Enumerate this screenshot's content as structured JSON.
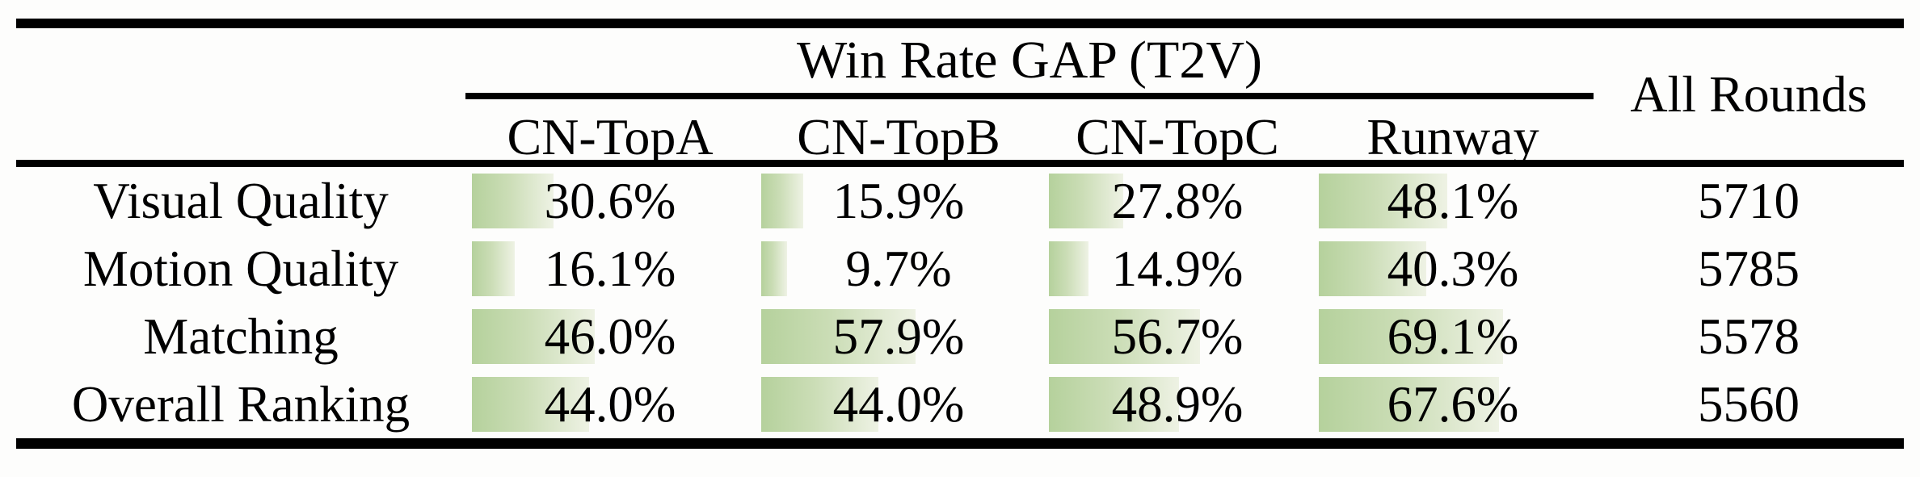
{
  "table": {
    "group_header": "Win Rate GAP (T2V)",
    "all_rounds_header": "All Rounds",
    "columns": [
      "CN-TopA",
      "CN-TopB",
      "CN-TopC",
      "Runway"
    ],
    "rows": [
      {
        "label": "Visual Quality",
        "cells": [
          {
            "pct": 30.6,
            "label": "30.6%"
          },
          {
            "pct": 15.9,
            "label": "15.9%"
          },
          {
            "pct": 27.8,
            "label": "27.8%"
          },
          {
            "pct": 48.1,
            "label": "48.1%"
          }
        ],
        "all_rounds": "5710"
      },
      {
        "label": "Motion Quality",
        "cells": [
          {
            "pct": 16.1,
            "label": "16.1%"
          },
          {
            "pct": 9.7,
            "label": "9.7%"
          },
          {
            "pct": 14.9,
            "label": "14.9%"
          },
          {
            "pct": 40.3,
            "label": "40.3%"
          }
        ],
        "all_rounds": "5785"
      },
      {
        "label": "Matching",
        "cells": [
          {
            "pct": 46.0,
            "label": "46.0%"
          },
          {
            "pct": 57.9,
            "label": "57.9%"
          },
          {
            "pct": 56.7,
            "label": "56.7%"
          },
          {
            "pct": 69.1,
            "label": "69.1%"
          }
        ],
        "all_rounds": "5578"
      },
      {
        "label": "Overall Ranking",
        "cells": [
          {
            "pct": 44.0,
            "label": "44.0%"
          },
          {
            "pct": 44.0,
            "label": "44.0%"
          },
          {
            "pct": 48.9,
            "label": "48.9%"
          },
          {
            "pct": 67.6,
            "label": "67.6%"
          }
        ],
        "all_rounds": "5560"
      }
    ],
    "colors": {
      "bar_left": "#b5d19c",
      "bar_right": "#eef2e4",
      "rule": "#000000"
    }
  }
}
